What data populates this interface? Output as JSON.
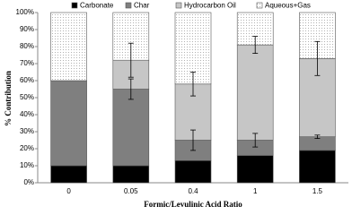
{
  "chart_data": {
    "type": "stacked-bar",
    "x_label": "Formic/Levulinic Acid Ratio",
    "y_label": "% Contribution",
    "categories": [
      "0",
      "0.05",
      "0.4",
      "1",
      "1.5"
    ],
    "series": [
      {
        "name": "Carbonate",
        "color": "#000000",
        "values": [
          10,
          10,
          13,
          16,
          19
        ]
      },
      {
        "name": "Char",
        "color": "#7f7f7f",
        "values": [
          50,
          45,
          12,
          9,
          8
        ],
        "errors": [
          null,
          6,
          6,
          4,
          1
        ]
      },
      {
        "name": "Hydrocarbon Oil",
        "color": "#c6c6c6",
        "values": [
          0,
          17,
          33,
          56,
          46
        ],
        "errors": [
          null,
          10,
          7,
          5,
          10
        ]
      },
      {
        "name": "Aqueous+Gas",
        "color": "#ffffff",
        "values": [
          40,
          28,
          42,
          19,
          27
        ]
      }
    ],
    "ylim": [
      0,
      100
    ],
    "yticks": [
      {
        "value": 0,
        "label": "0%"
      },
      {
        "value": 10,
        "label": "10%"
      },
      {
        "value": 20,
        "label": "20%"
      },
      {
        "value": 30,
        "label": "30%"
      },
      {
        "value": 40,
        "label": "40%"
      },
      {
        "value": 50,
        "label": "50%"
      },
      {
        "value": 60,
        "label": "60%"
      },
      {
        "value": 70,
        "label": "70%"
      },
      {
        "value": 80,
        "label": "80%"
      },
      {
        "value": 90,
        "label": "90%"
      },
      {
        "value": 100,
        "label": "100%"
      }
    ],
    "grid": false
  }
}
